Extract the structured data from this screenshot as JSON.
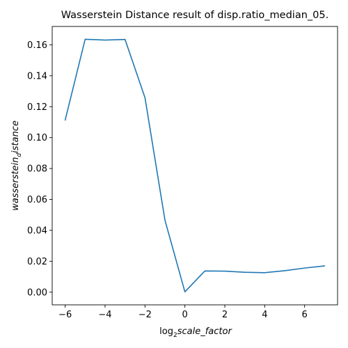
{
  "chart_data": {
    "type": "line",
    "title": "Wasserstein Distance result of disp.ratio_median_05.",
    "xlabel": {
      "prefix": "log",
      "subscript": "2",
      "main": "scale_factor"
    },
    "ylabel": {
      "main": "wasserstein",
      "subscript": "d",
      "suffix": "istance"
    },
    "x": [
      -6,
      -5,
      -4,
      -3,
      -2,
      -1,
      0,
      1,
      2,
      3,
      4,
      5,
      6,
      7
    ],
    "series": [
      {
        "values": [
          0.1113,
          0.1636,
          0.1631,
          0.1635,
          0.1258,
          0.0466,
          0.0002,
          0.0137,
          0.0136,
          0.0129,
          0.0126,
          0.0139,
          0.0156,
          0.017
        ],
        "color": "#1f77b4"
      }
    ],
    "xlim": [
      -6.65,
      7.65
    ],
    "ylim": [
      -0.0082,
      0.1719
    ],
    "xticks": [
      -6,
      -4,
      -2,
      0,
      2,
      4,
      6
    ],
    "xtick_labels": [
      "−6",
      "−4",
      "−2",
      "0",
      "2",
      "4",
      "6"
    ],
    "yticks": [
      0.0,
      0.02,
      0.04,
      0.06,
      0.08,
      0.1,
      0.12,
      0.14,
      0.16
    ],
    "ytick_labels": [
      "0.00",
      "0.02",
      "0.04",
      "0.06",
      "0.08",
      "0.10",
      "0.12",
      "0.14",
      "0.16"
    ],
    "grid": false,
    "legend": "none"
  }
}
